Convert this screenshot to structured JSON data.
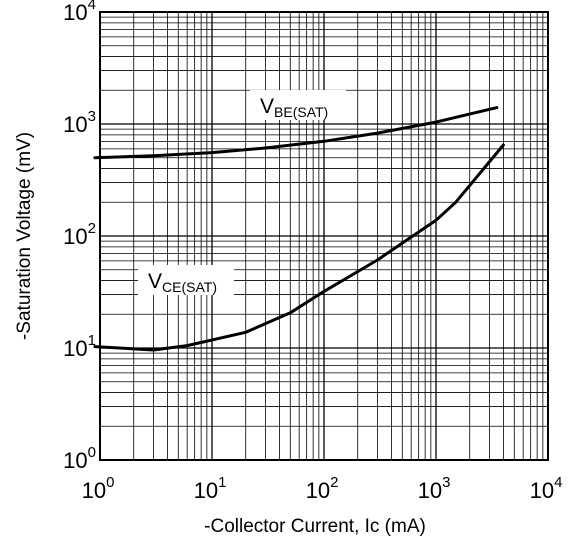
{
  "chart_data": {
    "type": "line",
    "xlabel": "-Collector Current, Ic (mA)",
    "ylabel": "-Saturation Voltage (mV)",
    "xscale": "log",
    "yscale": "log",
    "xlim": [
      1,
      10000
    ],
    "ylim": [
      1,
      10000
    ],
    "grid": true,
    "x_ticks": [
      {
        "base": "10",
        "exp": "0"
      },
      {
        "base": "10",
        "exp": "1"
      },
      {
        "base": "10",
        "exp": "2"
      },
      {
        "base": "10",
        "exp": "3"
      },
      {
        "base": "10",
        "exp": "4"
      }
    ],
    "y_ticks": [
      {
        "base": "10",
        "exp": "0"
      },
      {
        "base": "10",
        "exp": "1"
      },
      {
        "base": "10",
        "exp": "2"
      },
      {
        "base": "10",
        "exp": "3"
      },
      {
        "base": "10",
        "exp": "4"
      }
    ],
    "series": [
      {
        "name_main": "V",
        "name_sub": "BE(SAT)",
        "x": [
          0.9,
          3,
          10,
          30,
          100,
          300,
          1000,
          3500
        ],
        "y": [
          500,
          520,
          555,
          610,
          700,
          830,
          1040,
          1400
        ]
      },
      {
        "name_main": "V",
        "name_sub": "CE(SAT)",
        "x": [
          0.9,
          3,
          6,
          20,
          50,
          100,
          300,
          1000,
          1500,
          4000
        ],
        "y": [
          10.3,
          9.6,
          10.5,
          13.8,
          20.6,
          32,
          61,
          138,
          200,
          650
        ]
      }
    ]
  }
}
